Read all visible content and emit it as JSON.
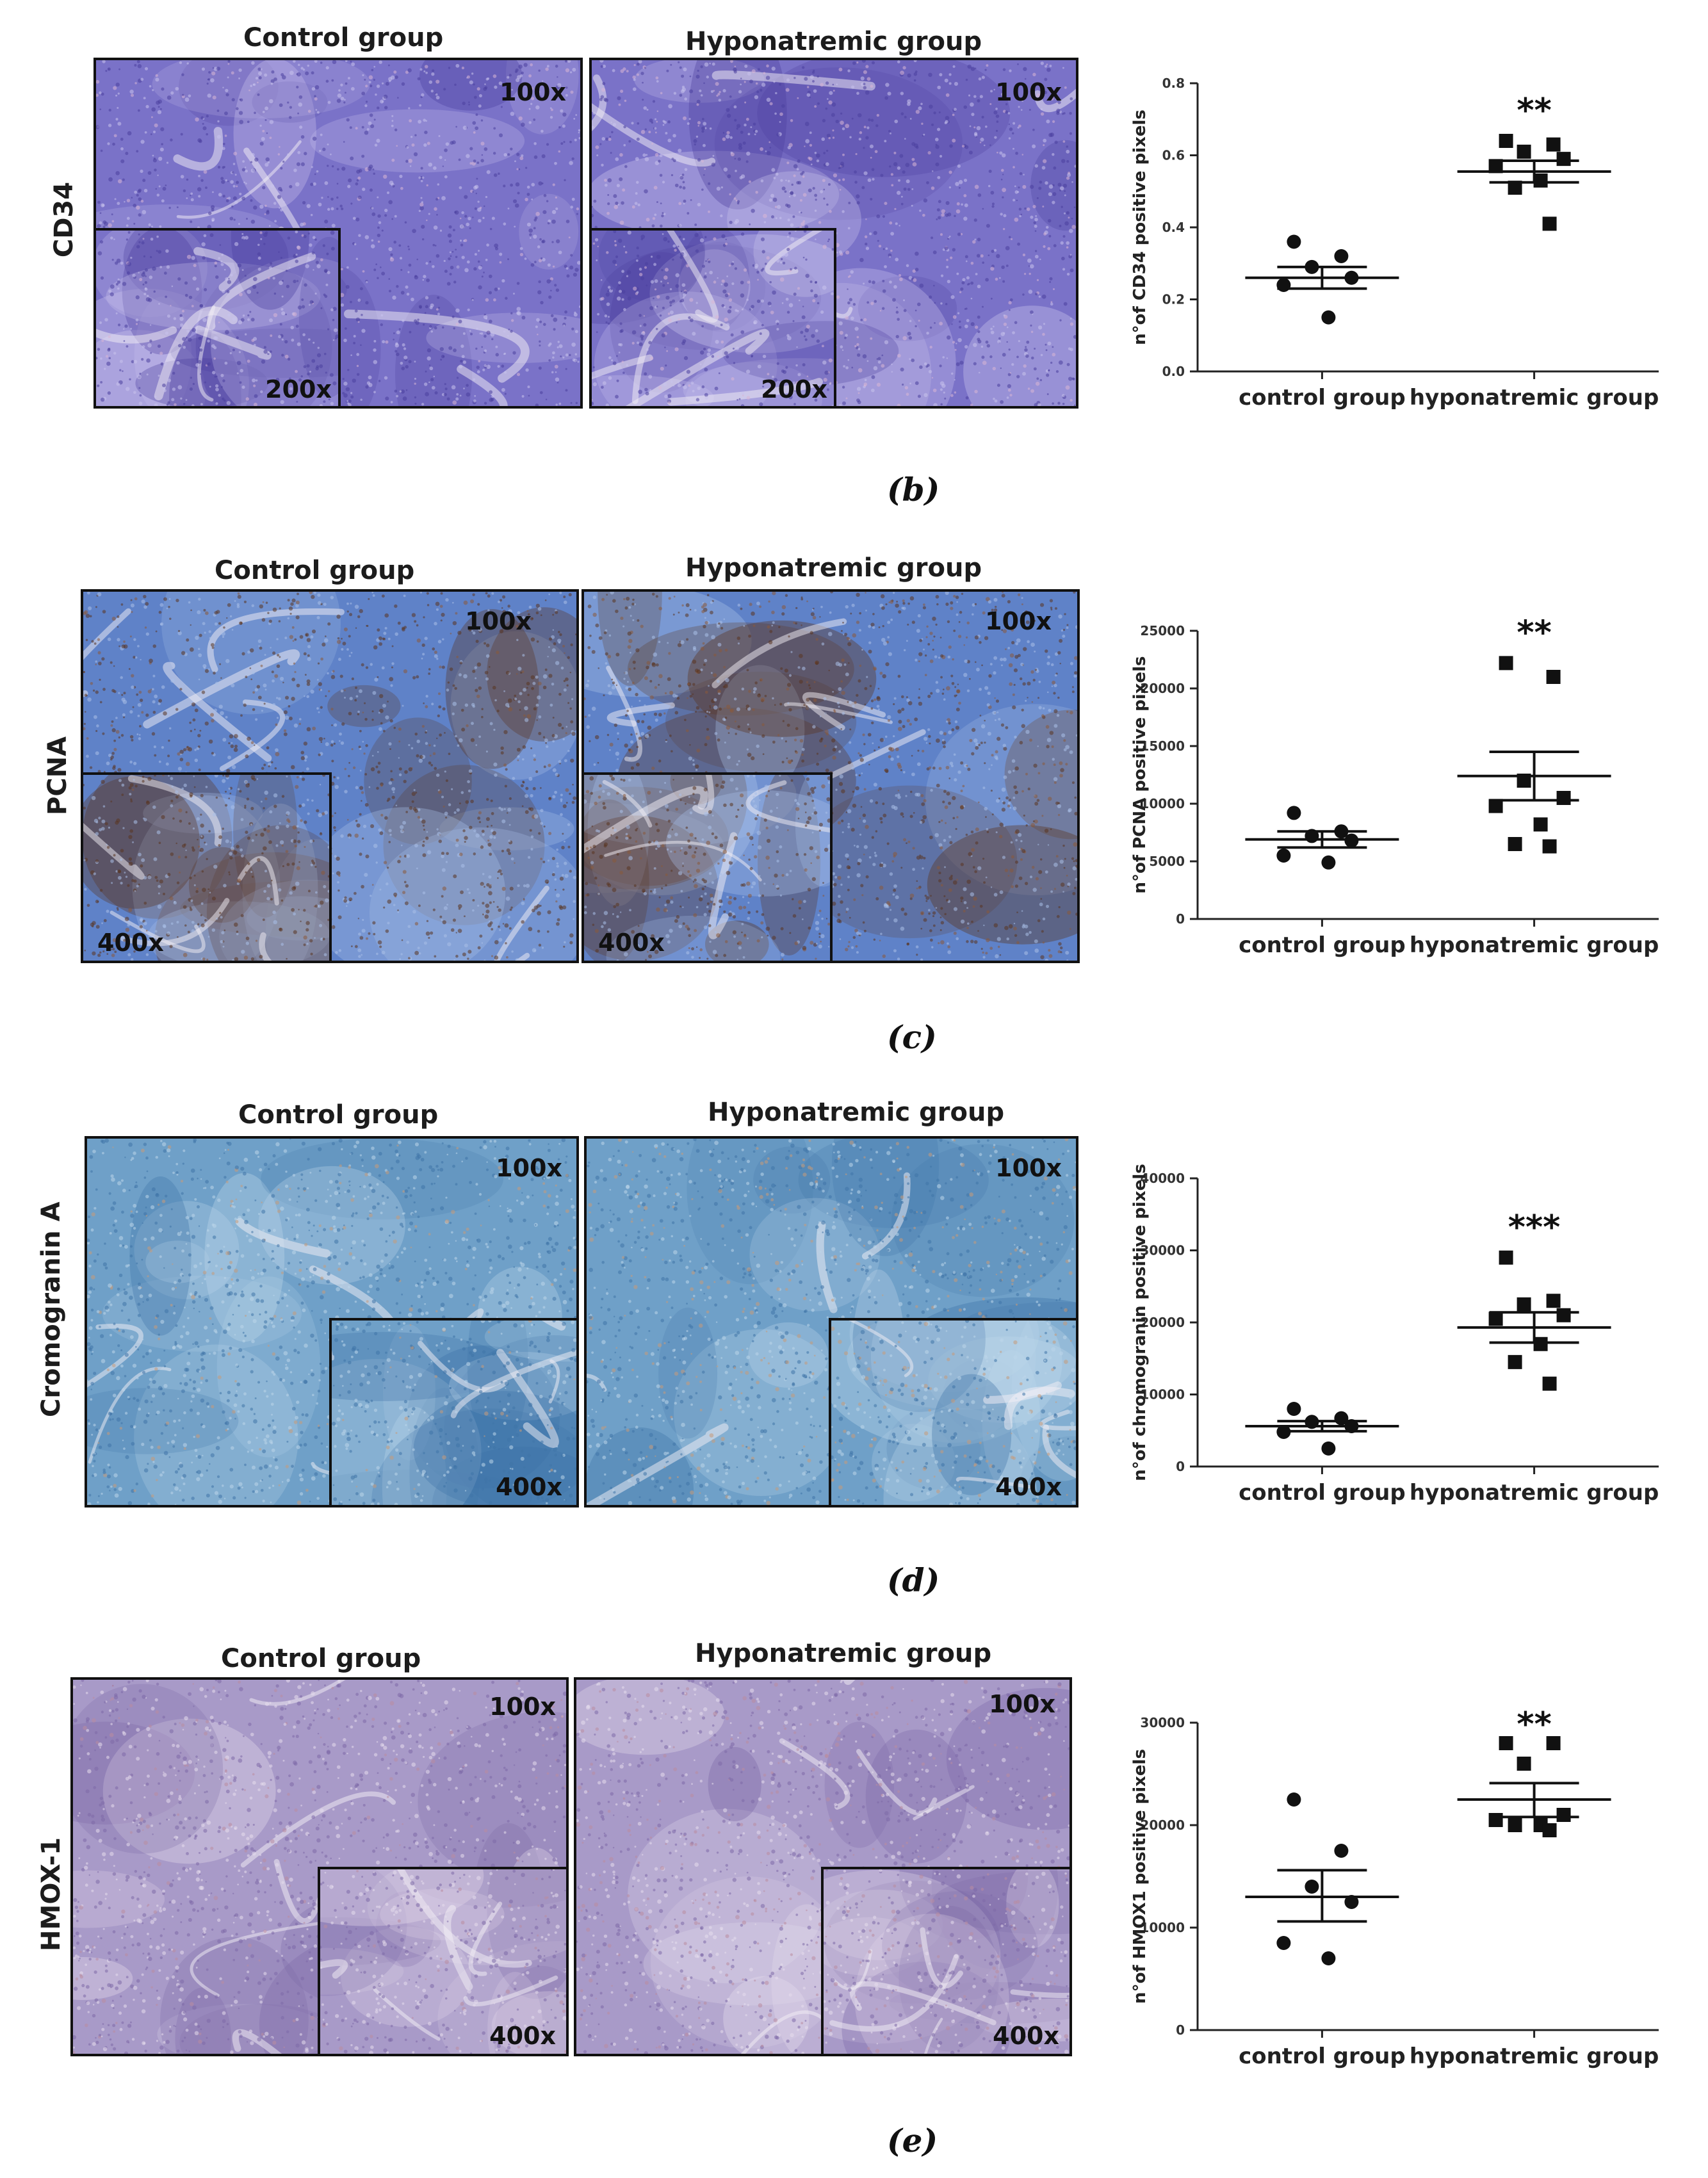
{
  "panels": [
    {
      "id": "b",
      "caption": "(b)",
      "marker": "CD34",
      "control_title": "Control group",
      "hypo_title": "Hyponatremic group",
      "control_mag": "100x",
      "control_inset_mag": "200x",
      "hypo_mag": "100x",
      "hypo_inset_mag": "200x",
      "colors": {
        "base": "#7a72c8",
        "dark": "#4b3f9e",
        "light": "#c9c2ec",
        "accent": "#d9b6d6"
      },
      "chart_data": {
        "type": "scatter",
        "ylabel": "n°of CD34 positive pixels",
        "categories": [
          "control group",
          "hyponatremic group"
        ],
        "ylim": [
          0,
          0.8
        ],
        "yticks": [
          "0.0",
          "0.2",
          "0.4",
          "0.6",
          "0.8"
        ],
        "significance": "**",
        "series": [
          {
            "marker": "circle",
            "values": [
              0.36,
              0.32,
              0.29,
              0.26,
              0.24,
              0.15
            ],
            "mean": 0.26,
            "sem": [
              0.23,
              0.29
            ]
          },
          {
            "marker": "square",
            "values": [
              0.64,
              0.63,
              0.61,
              0.59,
              0.57,
              0.53,
              0.51,
              0.41
            ],
            "mean": 0.555,
            "sem": [
              0.525,
              0.585
            ]
          }
        ]
      }
    },
    {
      "id": "c",
      "caption": "(c)",
      "marker": "PCNA",
      "control_title": "Control group",
      "hypo_title": "Hyponatremic group",
      "control_mag": "100x",
      "control_inset_mag": "400x",
      "hypo_mag": "100x",
      "hypo_inset_mag": "400x",
      "colors": {
        "base": "#5f82c8",
        "dark": "#5a3520",
        "light": "#a9c0e8",
        "accent": "#8a5a3a"
      },
      "chart_data": {
        "type": "scatter",
        "ylabel": "n°of PCNA positive pixels",
        "categories": [
          "control group",
          "hyponatremic group"
        ],
        "ylim": [
          0,
          25000
        ],
        "yticks": [
          "0",
          "5000",
          "10000",
          "15000",
          "20000",
          "25000"
        ],
        "significance": "**",
        "series": [
          {
            "marker": "circle",
            "values": [
              9200,
              7600,
              7200,
              6800,
              5500,
              4900
            ],
            "mean": 6900,
            "sem": [
              6200,
              7600
            ]
          },
          {
            "marker": "square",
            "values": [
              22200,
              21000,
              12000,
              10500,
              9800,
              8200,
              6500,
              6300
            ],
            "mean": 12400,
            "sem": [
              10300,
              14500
            ]
          }
        ]
      }
    },
    {
      "id": "d",
      "caption": "(d)",
      "marker": "Cromogranin A",
      "control_title": "Control group",
      "hypo_title": "Hyponatremic group",
      "control_mag": "100x",
      "control_inset_mag": "400x",
      "hypo_mag": "100x",
      "hypo_inset_mag": "400x",
      "colors": {
        "base": "#6fa0c8",
        "dark": "#3f74a8",
        "light": "#bcd6ea",
        "accent": "#c79a7a"
      },
      "chart_data": {
        "type": "scatter",
        "ylabel": "n°of chromogranin positive pixels",
        "categories": [
          "control group",
          "hyponatremic group"
        ],
        "ylim": [
          0,
          40000
        ],
        "yticks": [
          "0",
          "10000",
          "20000",
          "30000",
          "40000"
        ],
        "significance": "***",
        "series": [
          {
            "marker": "circle",
            "values": [
              8000,
              6700,
              6200,
              5600,
              4800,
              2500
            ],
            "mean": 5600,
            "sem": [
              4900,
              6300
            ]
          },
          {
            "marker": "square",
            "values": [
              29000,
              23000,
              22500,
              21000,
              20500,
              17000,
              14500,
              11500
            ],
            "mean": 19300,
            "sem": [
              17200,
              21400
            ]
          }
        ]
      }
    },
    {
      "id": "e",
      "caption": "(e)",
      "marker": "HMOX-1",
      "control_title": "Control group",
      "hypo_title": "Hyponatremic group",
      "control_mag": "100x",
      "control_inset_mag": "400x",
      "hypo_mag": "100x",
      "hypo_inset_mag": "400x",
      "colors": {
        "base": "#a89ac8",
        "dark": "#7d6aa8",
        "light": "#e6dcec",
        "accent": "#b98ca0"
      },
      "chart_data": {
        "type": "scatter",
        "ylabel": "n°of HMOX1 positive pixels",
        "categories": [
          "control group",
          "hyponatremic group"
        ],
        "ylim": [
          0,
          30000
        ],
        "yticks": [
          "0",
          "10000",
          "20000",
          "30000"
        ],
        "significance": "**",
        "series": [
          {
            "marker": "circle",
            "values": [
              22500,
              17500,
              14000,
              12500,
              8500,
              7000
            ],
            "mean": 13000,
            "sem": [
              10600,
              15600
            ]
          },
          {
            "marker": "square",
            "values": [
              28000,
              28000,
              26000,
              21000,
              20500,
              20000,
              20000,
              19500
            ],
            "mean": 22500,
            "sem": [
              20800,
              24100
            ]
          }
        ]
      }
    }
  ]
}
